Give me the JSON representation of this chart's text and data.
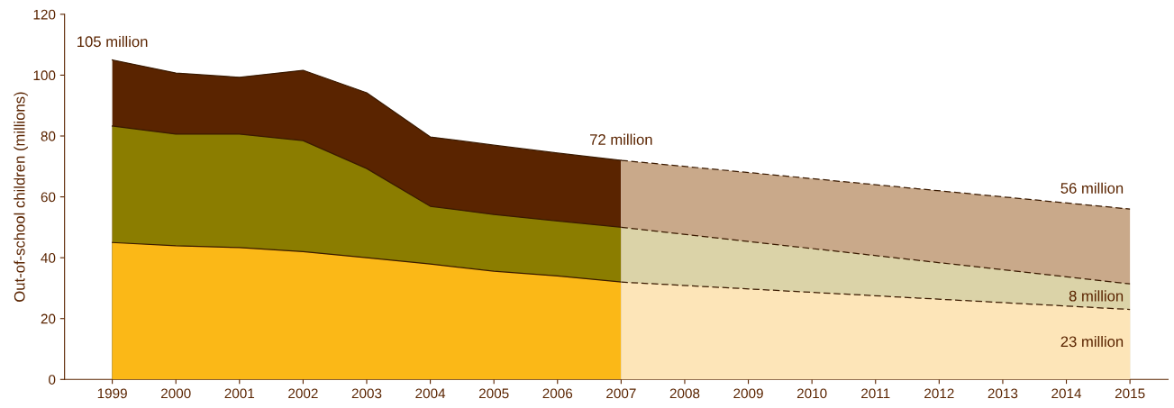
{
  "chart_data": {
    "type": "area",
    "ylabel": "Out-of-school children (millions)",
    "xlim": [
      1998.25,
      2015.6
    ],
    "xticks": [
      1999,
      2000,
      2001,
      2002,
      2003,
      2004,
      2005,
      2006,
      2007,
      2008,
      2009,
      2010,
      2011,
      2012,
      2013,
      2014,
      2015
    ],
    "ylim": [
      0,
      120
    ],
    "yticks": [
      0,
      20,
      40,
      60,
      80,
      100,
      120
    ],
    "grid": false,
    "legend": false,
    "series": [
      {
        "color": "#5a2400",
        "line_style": "solid",
        "x": [
          1999,
          2000,
          2001,
          2002,
          2003,
          2004,
          2005,
          2006,
          2007
        ],
        "values": [
          105,
          100.7,
          99.3,
          101.6,
          94.2,
          79.7,
          77,
          74.4,
          72
        ]
      },
      {
        "color": "#8b7d00",
        "line_style": "solid",
        "x": [
          1999,
          2000,
          2001,
          2002,
          2003,
          2004,
          2005,
          2006,
          2007
        ],
        "values": [
          83.3,
          80.6,
          80.6,
          78.5,
          69.3,
          56.9,
          54.2,
          52.1,
          50
        ]
      },
      {
        "color": "#fbb817",
        "line_style": "solid",
        "x": [
          1999,
          2000,
          2001,
          2002,
          2003,
          2004,
          2005,
          2006,
          2007
        ],
        "values": [
          45,
          43.9,
          43.3,
          42,
          40,
          37.9,
          35.6,
          34,
          32
        ]
      },
      {
        "color": "#c9a98a",
        "line_style": "dashed",
        "x": [
          2007,
          2015
        ],
        "values": [
          72,
          56
        ]
      },
      {
        "color": "#dbd3a8",
        "line_style": "dashed",
        "x": [
          2007,
          2015
        ],
        "values": [
          50,
          31.4
        ]
      },
      {
        "color": "#fde5b8",
        "line_style": "dashed",
        "x": [
          2007,
          2015
        ],
        "values": [
          32,
          23
        ]
      }
    ],
    "annotations": [
      {
        "text": "105 million",
        "x": 1999,
        "y": 105
      },
      {
        "text": "72 million",
        "x": 2007,
        "y": 72
      },
      {
        "text": "56 million",
        "x": 2015,
        "y": 56
      },
      {
        "text": "8 million",
        "x": 2015,
        "y": 27
      },
      {
        "text": "23 million",
        "x": 2015,
        "y": 12
      }
    ]
  }
}
